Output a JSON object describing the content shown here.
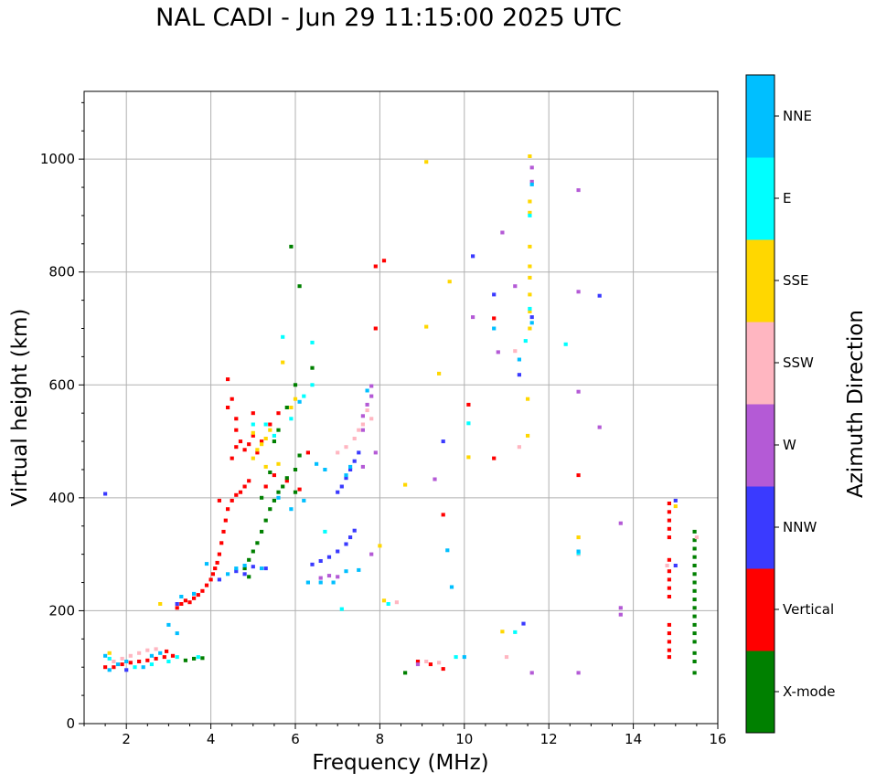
{
  "chart_data": {
    "type": "scatter",
    "title": "NAL CADI - Jun 29 11:15:00 2025 UTC",
    "xlabel": "Frequency (MHz)",
    "ylabel": "Virtual height (km)",
    "xlim": [
      1,
      16
    ],
    "ylim": [
      0,
      1120
    ],
    "xticks": [
      2,
      4,
      6,
      8,
      10,
      12,
      14,
      16
    ],
    "yticks": [
      0,
      200,
      400,
      600,
      800,
      1000
    ],
    "grid": true,
    "colorbar": {
      "label": "Azimuth Direction",
      "categories": [
        {
          "name": "X-mode",
          "color": "#008000"
        },
        {
          "name": "Vertical",
          "color": "#ff0000"
        },
        {
          "name": "NNW",
          "color": "#3a3aff"
        },
        {
          "name": "W",
          "color": "#b45ad6"
        },
        {
          "name": "SSW",
          "color": "#ffb6c1"
        },
        {
          "name": "SSE",
          "color": "#ffd700"
        },
        {
          "name": "E",
          "color": "#00ffff"
        },
        {
          "name": "NNE",
          "color": "#00bfff"
        }
      ]
    },
    "series": [
      {
        "name": "Vertical",
        "color": "#ff0000",
        "points": [
          [
            1.5,
            100
          ],
          [
            1.7,
            100
          ],
          [
            1.9,
            105
          ],
          [
            2.1,
            108
          ],
          [
            2.3,
            110
          ],
          [
            2.5,
            112
          ],
          [
            2.7,
            115
          ],
          [
            2.9,
            118
          ],
          [
            3.1,
            120
          ],
          [
            2.95,
            128
          ],
          [
            3.2,
            205
          ],
          [
            3.3,
            212
          ],
          [
            3.4,
            218
          ],
          [
            3.5,
            215
          ],
          [
            3.6,
            222
          ],
          [
            3.7,
            228
          ],
          [
            3.8,
            235
          ],
          [
            3.9,
            245
          ],
          [
            4.0,
            255
          ],
          [
            4.05,
            265
          ],
          [
            4.1,
            275
          ],
          [
            4.15,
            285
          ],
          [
            4.2,
            300
          ],
          [
            4.25,
            320
          ],
          [
            4.3,
            340
          ],
          [
            4.35,
            360
          ],
          [
            4.4,
            380
          ],
          [
            4.5,
            395
          ],
          [
            4.6,
            405
          ],
          [
            4.7,
            410
          ],
          [
            4.8,
            420
          ],
          [
            4.9,
            430
          ],
          [
            4.5,
            470
          ],
          [
            4.6,
            490
          ],
          [
            4.7,
            500
          ],
          [
            4.8,
            485
          ],
          [
            4.9,
            495
          ],
          [
            5.0,
            510
          ],
          [
            5.1,
            480
          ],
          [
            5.2,
            500
          ],
          [
            4.4,
            560
          ],
          [
            4.5,
            575
          ],
          [
            4.4,
            610
          ],
          [
            4.6,
            520
          ],
          [
            5.4,
            530
          ],
          [
            5.6,
            550
          ],
          [
            6.1,
            415
          ],
          [
            6.3,
            480
          ],
          [
            5.8,
            430
          ],
          [
            7.9,
            700
          ],
          [
            7.9,
            810
          ],
          [
            8.1,
            820
          ],
          [
            10.1,
            565
          ],
          [
            10.7,
            718
          ],
          [
            10.7,
            470
          ],
          [
            12.7,
            440
          ],
          [
            9.5,
            370
          ],
          [
            9.5,
            97
          ],
          [
            9.2,
            105
          ],
          [
            8.9,
            110
          ],
          [
            14.85,
            390
          ],
          [
            14.85,
            375
          ],
          [
            14.85,
            360
          ],
          [
            14.85,
            345
          ],
          [
            14.85,
            330
          ],
          [
            14.85,
            290
          ],
          [
            14.85,
            270
          ],
          [
            14.85,
            255
          ],
          [
            14.85,
            240
          ],
          [
            14.85,
            225
          ],
          [
            14.85,
            175
          ],
          [
            14.85,
            160
          ],
          [
            14.85,
            145
          ],
          [
            14.85,
            130
          ],
          [
            14.85,
            118
          ],
          [
            5.0,
            550
          ],
          [
            4.6,
            540
          ],
          [
            5.3,
            420
          ],
          [
            5.5,
            440
          ],
          [
            4.2,
            395
          ]
        ]
      },
      {
        "name": "X-mode",
        "color": "#008000",
        "points": [
          [
            3.4,
            112
          ],
          [
            3.6,
            115
          ],
          [
            3.8,
            116
          ],
          [
            4.8,
            275
          ],
          [
            4.9,
            290
          ],
          [
            5.0,
            305
          ],
          [
            5.1,
            320
          ],
          [
            5.2,
            340
          ],
          [
            5.3,
            360
          ],
          [
            5.4,
            380
          ],
          [
            5.5,
            395
          ],
          [
            5.6,
            410
          ],
          [
            5.7,
            420
          ],
          [
            5.8,
            435
          ],
          [
            6.0,
            450
          ],
          [
            6.1,
            475
          ],
          [
            5.5,
            500
          ],
          [
            5.6,
            520
          ],
          [
            5.8,
            560
          ],
          [
            6.0,
            600
          ],
          [
            6.4,
            630
          ],
          [
            6.1,
            775
          ],
          [
            5.9,
            845
          ],
          [
            6.0,
            410
          ],
          [
            8.6,
            90
          ],
          [
            15.45,
            340
          ],
          [
            15.45,
            325
          ],
          [
            15.45,
            310
          ],
          [
            15.45,
            295
          ],
          [
            15.45,
            280
          ],
          [
            15.45,
            265
          ],
          [
            15.45,
            250
          ],
          [
            15.45,
            235
          ],
          [
            15.45,
            220
          ],
          [
            15.45,
            205
          ],
          [
            15.45,
            190
          ],
          [
            15.45,
            175
          ],
          [
            15.45,
            160
          ],
          [
            15.45,
            145
          ],
          [
            15.45,
            125
          ],
          [
            15.45,
            110
          ],
          [
            15.45,
            90
          ],
          [
            5.4,
            445
          ],
          [
            5.2,
            400
          ],
          [
            4.9,
            260
          ]
        ]
      },
      {
        "name": "NNW",
        "color": "#3a3aff",
        "points": [
          [
            1.5,
            407
          ],
          [
            2.0,
            95
          ],
          [
            3.2,
            212
          ],
          [
            4.2,
            255
          ],
          [
            4.6,
            270
          ],
          [
            4.8,
            265
          ],
          [
            5.0,
            278
          ],
          [
            5.3,
            275
          ],
          [
            6.6,
            288
          ],
          [
            6.8,
            295
          ],
          [
            7.0,
            305
          ],
          [
            7.2,
            318
          ],
          [
            7.3,
            330
          ],
          [
            7.4,
            342
          ],
          [
            6.4,
            282
          ],
          [
            7.0,
            410
          ],
          [
            7.1,
            420
          ],
          [
            7.2,
            435
          ],
          [
            7.3,
            450
          ],
          [
            7.4,
            465
          ],
          [
            7.5,
            480
          ],
          [
            9.5,
            500
          ],
          [
            10.2,
            828
          ],
          [
            10.7,
            760
          ],
          [
            11.3,
            618
          ],
          [
            11.6,
            720
          ],
          [
            13.2,
            758
          ],
          [
            15.0,
            395
          ],
          [
            15.0,
            280
          ],
          [
            11.4,
            177
          ]
        ]
      },
      {
        "name": "W",
        "color": "#b45ad6",
        "points": [
          [
            6.6,
            258
          ],
          [
            6.8,
            262
          ],
          [
            7.0,
            260
          ],
          [
            7.6,
            520
          ],
          [
            7.6,
            545
          ],
          [
            7.7,
            565
          ],
          [
            7.8,
            580
          ],
          [
            7.8,
            598
          ],
          [
            7.9,
            480
          ],
          [
            7.8,
            300
          ],
          [
            8.9,
            105
          ],
          [
            10.2,
            720
          ],
          [
            10.9,
            870
          ],
          [
            11.2,
            775
          ],
          [
            11.6,
            960
          ],
          [
            11.6,
            985
          ],
          [
            12.7,
            945
          ],
          [
            12.7,
            765
          ],
          [
            12.7,
            588
          ],
          [
            13.2,
            525
          ],
          [
            13.7,
            355
          ],
          [
            13.7,
            205
          ],
          [
            13.7,
            193
          ],
          [
            12.7,
            90
          ],
          [
            11.6,
            90
          ],
          [
            10.8,
            658
          ],
          [
            9.3,
            433
          ],
          [
            7.6,
            455
          ]
        ]
      },
      {
        "name": "SSW",
        "color": "#ffb6c1",
        "points": [
          [
            1.7,
            110
          ],
          [
            1.9,
            115
          ],
          [
            2.1,
            120
          ],
          [
            2.3,
            125
          ],
          [
            2.5,
            130
          ],
          [
            2.7,
            132
          ],
          [
            7.0,
            480
          ],
          [
            7.2,
            490
          ],
          [
            7.4,
            505
          ],
          [
            7.5,
            520
          ],
          [
            7.6,
            530
          ],
          [
            7.8,
            540
          ],
          [
            7.7,
            555
          ],
          [
            8.4,
            215
          ],
          [
            9.1,
            110
          ],
          [
            9.4,
            108
          ],
          [
            11.0,
            118
          ],
          [
            11.2,
            660
          ],
          [
            11.3,
            490
          ],
          [
            12.7,
            300
          ],
          [
            12.7,
            330
          ],
          [
            14.8,
            280
          ],
          [
            15.5,
            330
          ]
        ]
      },
      {
        "name": "SSE",
        "color": "#ffd700",
        "points": [
          [
            2.8,
            212
          ],
          [
            5.0,
            470
          ],
          [
            5.1,
            485
          ],
          [
            5.2,
            495
          ],
          [
            5.3,
            505
          ],
          [
            5.4,
            520
          ],
          [
            5.0,
            515
          ],
          [
            5.3,
            455
          ],
          [
            5.6,
            460
          ],
          [
            5.9,
            560
          ],
          [
            6.0,
            575
          ],
          [
            5.7,
            640
          ],
          [
            8.0,
            315
          ],
          [
            8.1,
            218
          ],
          [
            8.6,
            423
          ],
          [
            9.1,
            995
          ],
          [
            9.1,
            703
          ],
          [
            9.4,
            620
          ],
          [
            9.65,
            783
          ],
          [
            10.1,
            472
          ],
          [
            10.9,
            163
          ],
          [
            11.55,
            730
          ],
          [
            11.55,
            760
          ],
          [
            11.55,
            790
          ],
          [
            11.55,
            810
          ],
          [
            11.55,
            905
          ],
          [
            11.55,
            925
          ],
          [
            11.55,
            1005
          ],
          [
            11.55,
            845
          ],
          [
            11.55,
            700
          ],
          [
            11.5,
            575
          ],
          [
            11.5,
            510
          ],
          [
            12.7,
            330
          ],
          [
            15.0,
            385
          ],
          [
            1.6,
            125
          ]
        ]
      },
      {
        "name": "E",
        "color": "#00ffff",
        "points": [
          [
            1.6,
            115
          ],
          [
            2.2,
            100
          ],
          [
            2.6,
            105
          ],
          [
            3.0,
            110
          ],
          [
            5.0,
            530
          ],
          [
            5.3,
            530
          ],
          [
            5.5,
            510
          ],
          [
            5.9,
            540
          ],
          [
            6.2,
            580
          ],
          [
            6.4,
            600
          ],
          [
            6.4,
            675
          ],
          [
            5.7,
            685
          ],
          [
            6.7,
            340
          ],
          [
            7.1,
            203
          ],
          [
            8.2,
            212
          ],
          [
            9.8,
            118
          ],
          [
            10.1,
            532
          ],
          [
            11.2,
            162
          ],
          [
            11.55,
            735
          ],
          [
            11.55,
            900
          ],
          [
            11.45,
            678
          ],
          [
            12.4,
            672
          ],
          [
            12.7,
            302
          ],
          [
            3.2,
            118
          ],
          [
            3.7,
            118
          ]
        ]
      },
      {
        "name": "NNE",
        "color": "#00bfff",
        "points": [
          [
            1.5,
            120
          ],
          [
            1.6,
            95
          ],
          [
            1.8,
            105
          ],
          [
            2.0,
            110
          ],
          [
            2.4,
            100
          ],
          [
            2.6,
            120
          ],
          [
            2.8,
            125
          ],
          [
            3.0,
            175
          ],
          [
            3.2,
            160
          ],
          [
            3.3,
            225
          ],
          [
            3.9,
            283
          ],
          [
            4.4,
            265
          ],
          [
            4.6,
            275
          ],
          [
            4.8,
            280
          ],
          [
            5.2,
            275
          ],
          [
            6.3,
            250
          ],
          [
            6.6,
            250
          ],
          [
            6.9,
            250
          ],
          [
            7.2,
            270
          ],
          [
            7.5,
            272
          ],
          [
            6.5,
            460
          ],
          [
            6.7,
            450
          ],
          [
            7.2,
            440
          ],
          [
            7.3,
            455
          ],
          [
            7.7,
            590
          ],
          [
            6.2,
            395
          ],
          [
            5.6,
            400
          ],
          [
            5.9,
            380
          ],
          [
            9.7,
            242
          ],
          [
            9.6,
            307
          ],
          [
            10.0,
            118
          ],
          [
            10.7,
            700
          ],
          [
            11.3,
            645
          ],
          [
            11.6,
            955
          ],
          [
            11.6,
            710
          ],
          [
            12.7,
            305
          ],
          [
            6.1,
            570
          ],
          [
            3.6,
            230
          ]
        ]
      }
    ]
  }
}
